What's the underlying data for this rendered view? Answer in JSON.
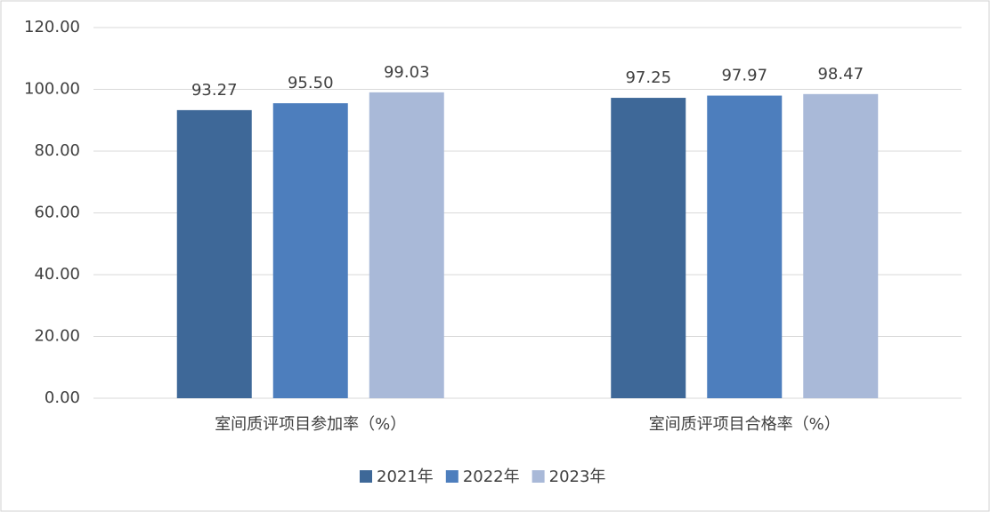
{
  "chart_data": {
    "type": "bar",
    "categories": [
      "室间质评项目参加率（%）",
      "室间质评项目合格率（%）"
    ],
    "series": [
      {
        "name": "2021年",
        "color": "#3e6898",
        "values": [
          93.27,
          97.25
        ],
        "value_labels": [
          "93.27",
          "97.25"
        ]
      },
      {
        "name": "2022年",
        "color": "#4d7ebd",
        "values": [
          95.5,
          97.97
        ],
        "value_labels": [
          "95.50",
          "97.97"
        ]
      },
      {
        "name": "2023年",
        "color": "#a9b9d8",
        "values": [
          99.03,
          98.47
        ],
        "value_labels": [
          "99.03",
          "98.47"
        ]
      }
    ],
    "ylim": [
      0,
      120
    ],
    "yticks": [
      {
        "value": 0,
        "label": "0.00"
      },
      {
        "value": 20,
        "label": "20.00"
      },
      {
        "value": 40,
        "label": "40.00"
      },
      {
        "value": 60,
        "label": "60.00"
      },
      {
        "value": 80,
        "label": "80.00"
      },
      {
        "value": 100,
        "label": "100.00"
      },
      {
        "value": 120,
        "label": "120.00"
      }
    ],
    "grid": true,
    "legend": "bottom"
  }
}
